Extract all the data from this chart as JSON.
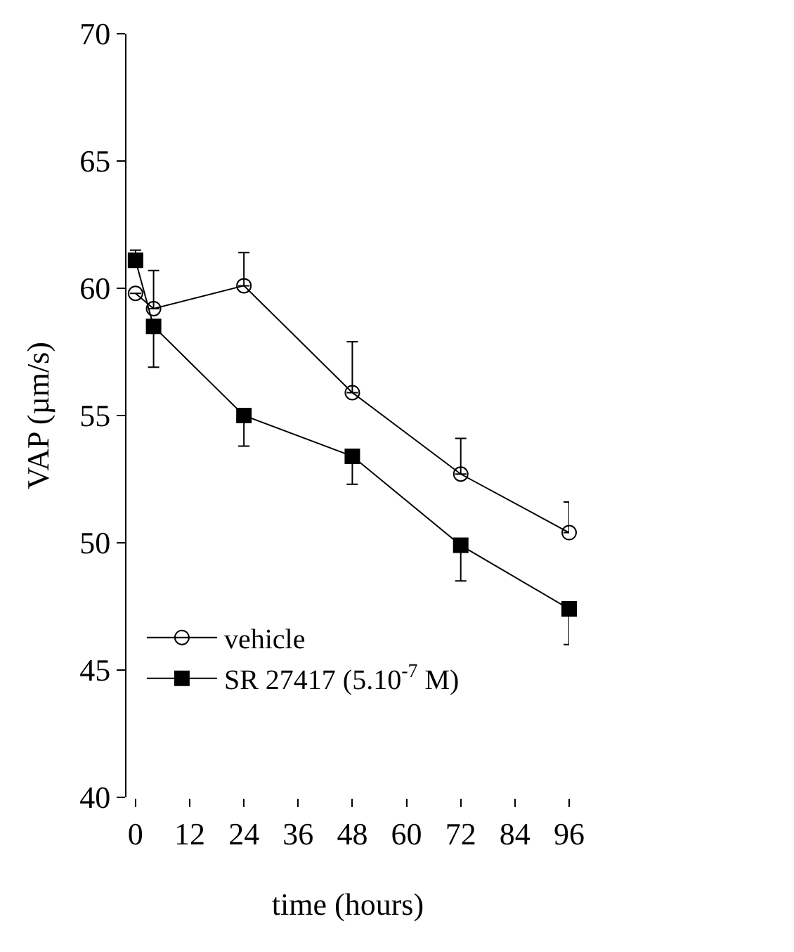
{
  "chart_data": {
    "type": "line",
    "xlabel": "time (hours)",
    "ylabel": "VAP (µm/s)",
    "x": [
      0,
      4,
      24,
      48,
      72,
      96
    ],
    "series": [
      {
        "name": "vehicle",
        "color": "#000000",
        "marker": "circle-open",
        "values": [
          59.8,
          59.2,
          60.1,
          55.9,
          52.7,
          50.4
        ],
        "errors": [
          null,
          [
            59.2,
            60.7
          ],
          [
            60.1,
            61.4
          ],
          [
            55.9,
            57.9
          ],
          [
            52.7,
            54.1
          ],
          [
            50.4,
            51.6
          ]
        ]
      },
      {
        "name": "SR 27417 (5.10$^{-7}$ M)",
        "color": "#000000",
        "marker": "square",
        "values": [
          61.1,
          58.5,
          55.0,
          53.4,
          49.9,
          47.4
        ],
        "errors": [
          [
            61.1,
            61.5
          ],
          [
            56.9,
            58.5
          ],
          [
            53.8,
            55.0
          ],
          [
            52.3,
            53.4
          ],
          [
            48.5,
            49.9
          ],
          [
            46.0,
            47.4
          ]
        ]
      }
    ],
    "xlim": [
      -2,
      96
    ],
    "xticks": [
      0,
      12,
      24,
      36,
      48,
      60,
      72,
      84,
      96
    ],
    "ylim": [
      40,
      70
    ],
    "yticks": [
      40,
      45,
      50,
      55,
      60,
      65,
      70
    ],
    "legend": "bottom left",
    "line_style": "solid"
  }
}
